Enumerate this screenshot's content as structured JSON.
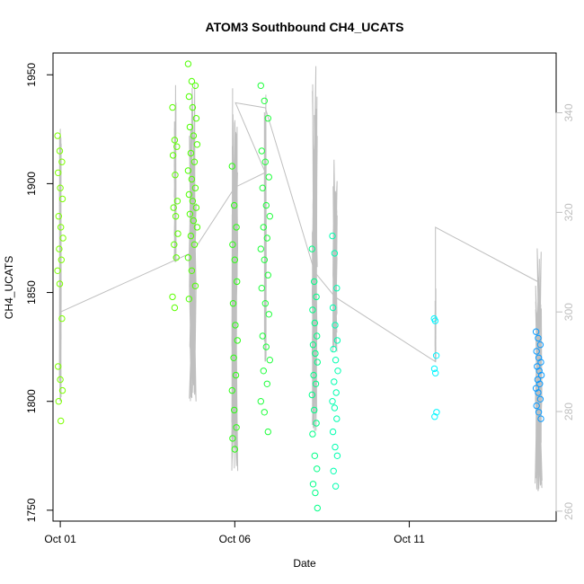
{
  "chart_data": {
    "type": "scatter",
    "title": "ATOM3 Southbound CH4_UCATS",
    "xlabel": "Date",
    "ylabel": "CH4_UCATS",
    "x_axis": {
      "type": "date",
      "min": "2017-09-30T19:00",
      "max": "2017-10-15T05:00",
      "ticks": [
        "Oct 01",
        "Oct 06",
        "Oct 11"
      ],
      "tick_values": [
        "2017-10-01",
        "2017-10-06",
        "2017-10-11"
      ]
    },
    "y_left": {
      "min": 1745,
      "max": 1960,
      "ticks": [
        1750,
        1800,
        1850,
        1900,
        1950
      ]
    },
    "y_right": {
      "min": 258,
      "max": 352,
      "ticks": [
        260,
        280,
        300,
        320,
        340
      ],
      "color": "#bfbfbf"
    },
    "grid": false,
    "altitude_trace_color": "#bfbfbf",
    "series": [
      {
        "x": "2017-10-01 00:00",
        "color": "#7cff00",
        "values": [
          1922,
          1915,
          1910,
          1905,
          1898,
          1893,
          1885,
          1880,
          1875,
          1870,
          1865,
          1860,
          1854,
          1838,
          1816,
          1810,
          1805,
          1800,
          1791
        ]
      },
      {
        "x": "2017-10-04 07:00",
        "color": "#5cff00",
        "values": [
          1935,
          1920,
          1917,
          1913,
          1904,
          1892,
          1889,
          1885,
          1877,
          1872,
          1866,
          1848,
          1843
        ]
      },
      {
        "x": "2017-10-04 19:00",
        "color": "#4dff00",
        "values": [
          1955,
          1947,
          1945,
          1940,
          1935,
          1930,
          1926,
          1922,
          1918,
          1914,
          1910,
          1906,
          1902,
          1898,
          1895,
          1892,
          1889,
          1886,
          1883,
          1880,
          1876,
          1872,
          1866,
          1860,
          1853,
          1847
        ]
      },
      {
        "x": "2017-10-06 00:00",
        "color": "#2aff12",
        "values": [
          1908,
          1890,
          1880,
          1872,
          1865,
          1855,
          1845,
          1835,
          1828,
          1820,
          1812,
          1805,
          1796,
          1788,
          1783,
          1778
        ]
      },
      {
        "x": "2017-10-06 21:00",
        "color": "#1dff3a",
        "values": [
          1945,
          1938,
          1930,
          1915,
          1910,
          1903,
          1898,
          1890,
          1885,
          1880,
          1875,
          1870,
          1865,
          1858,
          1852,
          1845,
          1840,
          1830,
          1825,
          1819,
          1814,
          1808,
          1800,
          1795,
          1786
        ]
      },
      {
        "x": "2017-10-08 07:00",
        "color": "#00ff87",
        "values": [
          1870,
          1855,
          1848,
          1842,
          1836,
          1830,
          1826,
          1822,
          1818,
          1812,
          1808,
          1803,
          1796,
          1790,
          1785,
          1775,
          1769,
          1762,
          1758,
          1751
        ]
      },
      {
        "x": "2017-10-08 21:00",
        "color": "#00ffb0",
        "values": [
          1876,
          1868,
          1852,
          1843,
          1835,
          1828,
          1824,
          1819,
          1814,
          1809,
          1804,
          1800,
          1797,
          1792,
          1786,
          1779,
          1775,
          1768,
          1761
        ]
      },
      {
        "x": "2017-10-11 18:00",
        "color": "#00f5ff",
        "values": [
          1838,
          1837,
          1821,
          1815,
          1813,
          1795,
          1793
        ]
      },
      {
        "x": "2017-10-14 17:00",
        "color": "#0a9bff",
        "values": [
          1832,
          1829,
          1826,
          1823,
          1820,
          1818,
          1816,
          1814,
          1812,
          1810,
          1808,
          1806,
          1804,
          1801,
          1798,
          1795,
          1792
        ]
      }
    ]
  }
}
